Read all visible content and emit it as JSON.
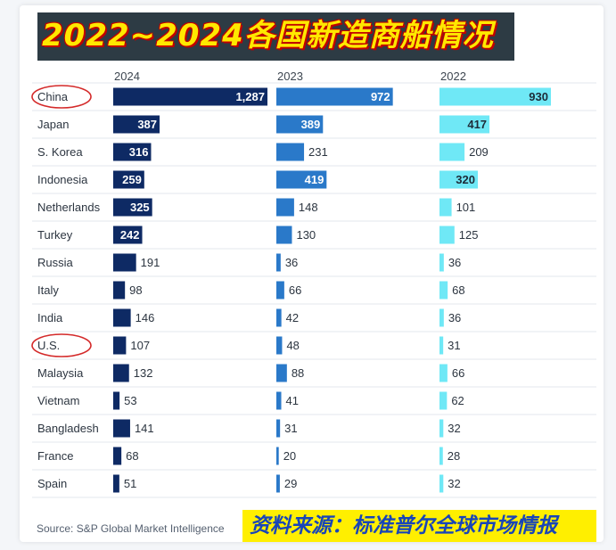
{
  "banner_title": "2022~2024各国新造商船情况",
  "source": "Source: S&P Global Market Intelligence",
  "source_cn": "资料来源：标准普尔全球市场情报",
  "colors": {
    "2024": "#0e2a64",
    "2023": "#2a79c9",
    "2022": "#6fe8f6",
    "highlight_circle": "#d42a2a"
  },
  "highlighted_countries": [
    "China",
    "U.S."
  ],
  "chart_data": {
    "type": "bar",
    "orientation": "horizontal",
    "panels": [
      "2024",
      "2023",
      "2022"
    ],
    "categories": [
      "China",
      "Japan",
      "S. Korea",
      "Indonesia",
      "Netherlands",
      "Turkey",
      "Russia",
      "Italy",
      "India",
      "U.S.",
      "Malaysia",
      "Vietnam",
      "Bangladesh",
      "France",
      "Spain"
    ],
    "series": [
      {
        "name": "2024",
        "values": [
          1287,
          387,
          316,
          259,
          325,
          242,
          191,
          98,
          146,
          107,
          132,
          53,
          141,
          68,
          51
        ],
        "labels": [
          "1,287",
          "387",
          "316",
          "259",
          "325",
          "242",
          "191",
          "98",
          "146",
          "107",
          "132",
          "53",
          "141",
          "68",
          "51"
        ]
      },
      {
        "name": "2023",
        "values": [
          972,
          389,
          231,
          419,
          148,
          130,
          36,
          66,
          42,
          48,
          88,
          41,
          31,
          20,
          29
        ],
        "labels": [
          "972",
          "389",
          "231",
          "419",
          "148",
          "130",
          "36",
          "66",
          "42",
          "48",
          "88",
          "41",
          "31",
          "20",
          "29"
        ]
      },
      {
        "name": "2022",
        "values": [
          930,
          417,
          209,
          320,
          101,
          125,
          36,
          68,
          36,
          31,
          66,
          62,
          32,
          28,
          32
        ],
        "labels": [
          "930",
          "417",
          "209",
          "320",
          "101",
          "125",
          "36",
          "68",
          "36",
          "31",
          "66",
          "62",
          "32",
          "28",
          "32"
        ]
      }
    ],
    "title": "",
    "xlabel": "",
    "ylabel": "",
    "xlim": [
      0,
      1287
    ],
    "grid": "horizontal row separators",
    "legend": "none"
  }
}
